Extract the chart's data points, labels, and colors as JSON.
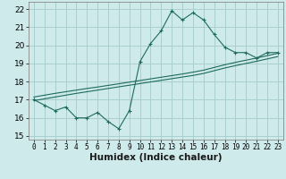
{
  "xlabel": "Humidex (Indice chaleur)",
  "background_color": "#ceeaea",
  "grid_color": "#aacece",
  "line_color": "#1e6b5e",
  "x_values": [
    0,
    1,
    2,
    3,
    4,
    5,
    6,
    7,
    8,
    9,
    10,
    11,
    12,
    13,
    14,
    15,
    16,
    17,
    18,
    19,
    20,
    21,
    22,
    23
  ],
  "y_main": [
    17.0,
    16.7,
    16.4,
    16.6,
    16.0,
    16.0,
    16.3,
    15.8,
    15.4,
    16.4,
    19.1,
    20.1,
    20.8,
    21.9,
    21.4,
    21.8,
    21.4,
    20.6,
    19.9,
    19.6,
    19.6,
    19.3,
    19.6,
    19.6
  ],
  "y_line1": [
    16.95,
    17.05,
    17.15,
    17.25,
    17.35,
    17.44,
    17.53,
    17.62,
    17.71,
    17.8,
    17.89,
    17.98,
    18.07,
    18.16,
    18.25,
    18.34,
    18.45,
    18.6,
    18.75,
    18.88,
    19.0,
    19.12,
    19.25,
    19.38
  ],
  "y_line2": [
    17.15,
    17.25,
    17.35,
    17.44,
    17.53,
    17.62,
    17.7,
    17.79,
    17.88,
    17.97,
    18.06,
    18.15,
    18.24,
    18.33,
    18.42,
    18.52,
    18.63,
    18.78,
    18.93,
    19.06,
    19.18,
    19.3,
    19.43,
    19.56
  ],
  "ylim": [
    14.8,
    22.4
  ],
  "xlim": [
    -0.5,
    23.5
  ],
  "yticks": [
    15,
    16,
    17,
    18,
    19,
    20,
    21,
    22
  ],
  "xticks": [
    0,
    1,
    2,
    3,
    4,
    5,
    6,
    7,
    8,
    9,
    10,
    11,
    12,
    13,
    14,
    15,
    16,
    17,
    18,
    19,
    20,
    21,
    22,
    23
  ],
  "xlabel_fontsize": 7.5,
  "tick_fontsize": 6.5
}
